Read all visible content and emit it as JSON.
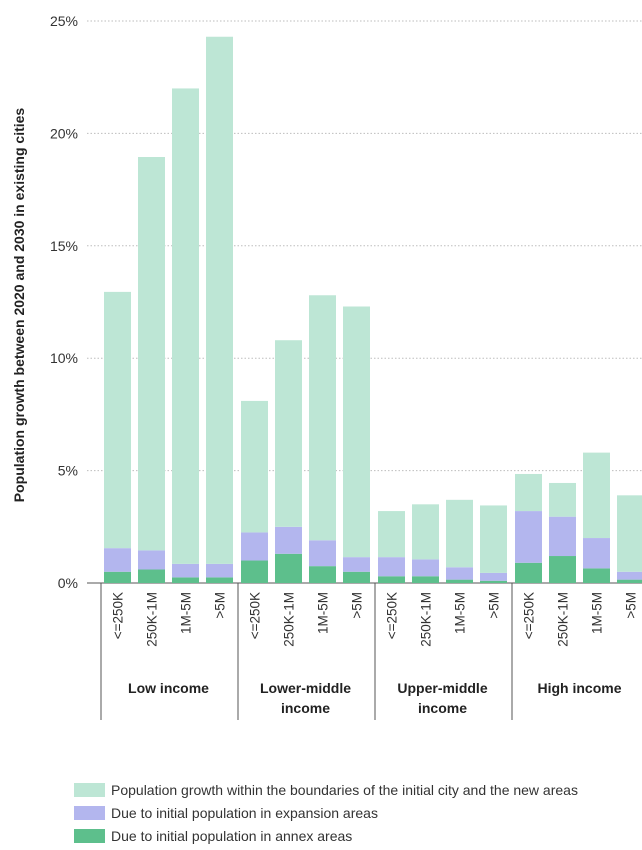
{
  "chart_data": {
    "type": "bar",
    "stacked": true,
    "ylabel": "Population growth between 2020 and 2030 in existing cities",
    "ylim": [
      0,
      25
    ],
    "yticks": [
      "0%",
      "5%",
      "10%",
      "15%",
      "20%",
      "25%"
    ],
    "ytick_values": [
      0,
      5,
      10,
      15,
      20,
      25
    ],
    "grid": true,
    "groups": [
      {
        "label": "Low income",
        "categories": [
          "<=250K",
          "250K-1M",
          "1M-5M",
          ">5M"
        ]
      },
      {
        "label": "Lower-middle income",
        "categories": [
          "<=250K",
          "250K-1M",
          "1M-5M",
          ">5M"
        ]
      },
      {
        "label": "Upper-middle income",
        "categories": [
          "<=250K",
          "250K-1M",
          "1M-5M",
          ">5M"
        ]
      },
      {
        "label": "High income",
        "categories": [
          "<=250K",
          "250K-1M",
          "1M-5M",
          ">5M"
        ]
      }
    ],
    "series": [
      {
        "name": "Due to initial population in annex areas",
        "color": "#5dbf8c",
        "values": [
          0.5,
          0.6,
          0.25,
          0.25,
          1.0,
          1.3,
          0.75,
          0.5,
          0.3,
          0.3,
          0.15,
          0.1,
          0.9,
          1.2,
          0.65,
          0.15
        ]
      },
      {
        "name": "Due to initial population in expansion areas",
        "color": "#b3b6ee",
        "values": [
          1.05,
          0.85,
          0.6,
          0.6,
          1.25,
          1.2,
          1.15,
          0.65,
          0.85,
          0.75,
          0.55,
          0.35,
          2.3,
          1.75,
          1.35,
          0.35
        ]
      },
      {
        "name": "Population growth within the boundaries of the initial city and the new areas",
        "color": "#bde6d5",
        "values": [
          11.4,
          17.5,
          21.15,
          23.45,
          5.85,
          8.3,
          10.9,
          11.15,
          2.05,
          2.45,
          3.0,
          3.0,
          1.65,
          1.5,
          3.8,
          3.4
        ]
      }
    ],
    "legend_position": "bottom-left"
  }
}
